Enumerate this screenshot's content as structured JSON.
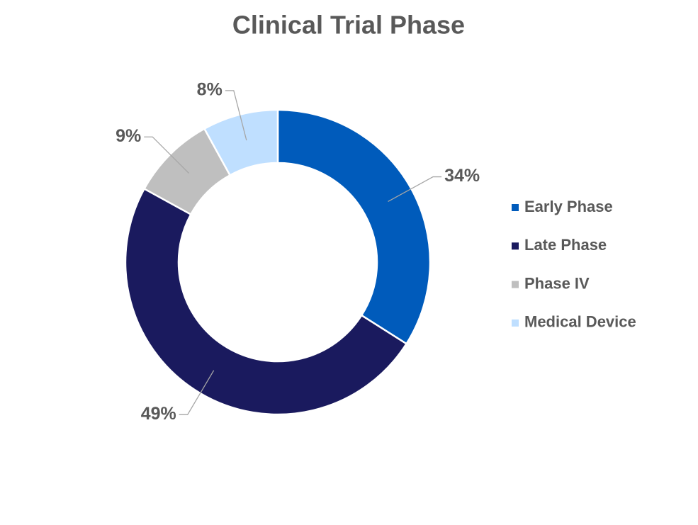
{
  "chart_data": {
    "type": "donut",
    "title": "Clinical Trial Phase",
    "categories": [
      "Early Phase",
      "Late Phase",
      "Phase IV",
      "Medical Device"
    ],
    "values": [
      34,
      49,
      9,
      8
    ],
    "value_labels": [
      "34%",
      "49%",
      "9%",
      "8%"
    ],
    "colors": [
      "#005bbb",
      "#1a1a5e",
      "#bfbfbf",
      "#bfdfff"
    ],
    "legend": "right"
  }
}
